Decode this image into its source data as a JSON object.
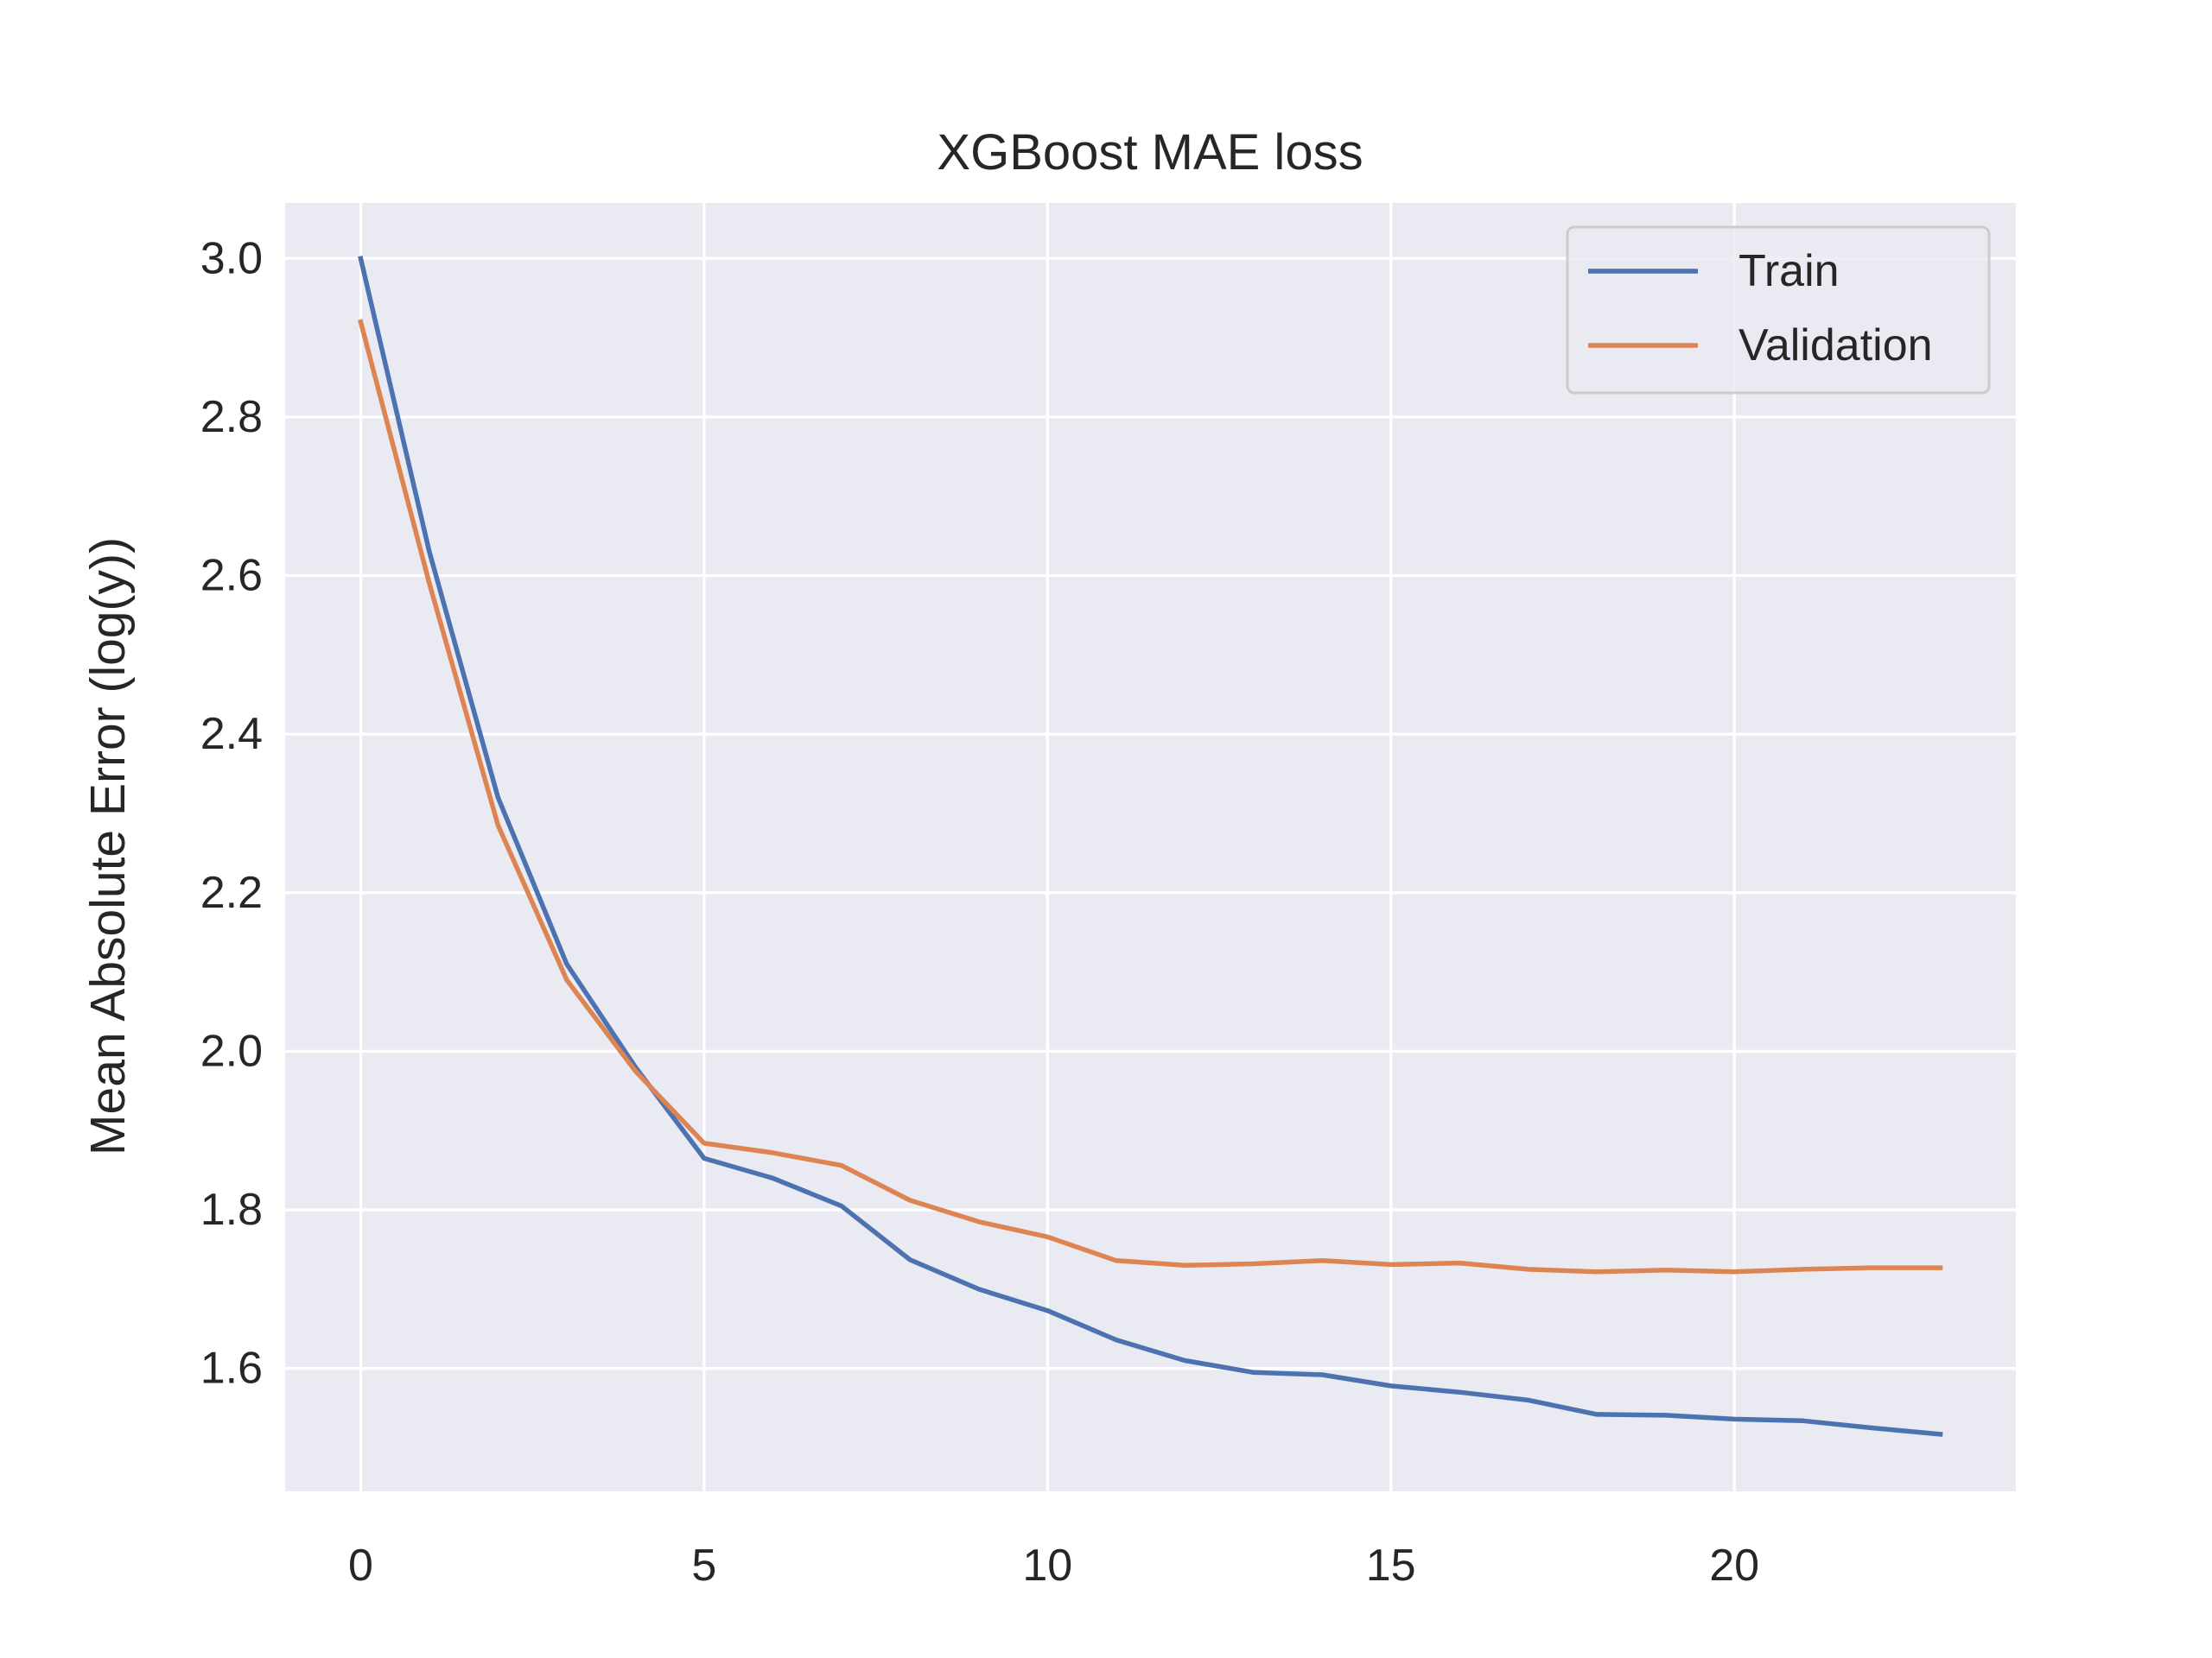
{
  "chart_data": {
    "type": "line",
    "title": "XGBoost MAE loss",
    "xlabel": "",
    "ylabel": "Mean Absolute Error (log(y))",
    "xlim": [
      -1.1,
      24.1
    ],
    "ylim": [
      1.445,
      3.07
    ],
    "x_ticks": [
      "0",
      "5",
      "10",
      "15",
      "20"
    ],
    "x_tick_values": [
      0,
      5,
      10,
      15,
      20
    ],
    "y_ticks": [
      "1.6",
      "1.8",
      "2.0",
      "2.2",
      "2.4",
      "2.6",
      "2.8",
      "3.0"
    ],
    "y_tick_values": [
      1.6,
      1.8,
      2.0,
      2.2,
      2.4,
      2.6,
      2.8,
      3.0
    ],
    "grid": true,
    "legend_position": "top-right",
    "x": [
      0,
      1,
      2,
      3,
      4,
      5,
      6,
      7,
      8,
      9,
      10,
      11,
      12,
      13,
      14,
      15,
      16,
      17,
      18,
      19,
      20,
      21,
      22,
      23
    ],
    "series": [
      {
        "name": "Train",
        "color": "#4c72b0",
        "values": [
          3.0,
          2.63,
          2.32,
          2.11,
          1.98,
          1.865,
          1.84,
          1.805,
          1.737,
          1.7,
          1.673,
          1.636,
          1.61,
          1.595,
          1.592,
          1.578,
          1.57,
          1.56,
          1.542,
          1.541,
          1.536,
          1.534,
          1.525,
          1.517
        ]
      },
      {
        "name": "Validation",
        "color": "#dd8452",
        "values": [
          2.92,
          2.59,
          2.285,
          2.09,
          1.975,
          1.884,
          1.872,
          1.856,
          1.812,
          1.785,
          1.766,
          1.736,
          1.73,
          1.732,
          1.736,
          1.731,
          1.733,
          1.725,
          1.722,
          1.724,
          1.722,
          1.725,
          1.727,
          1.727
        ]
      }
    ]
  }
}
